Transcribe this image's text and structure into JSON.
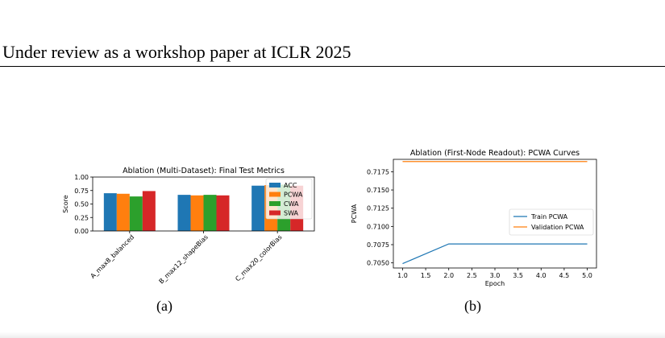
{
  "page": {
    "header": "Under review as a workshop paper at ICLR 2025",
    "subcaption_a": "(a)",
    "subcaption_b": "(b)"
  },
  "chart_data": [
    {
      "type": "bar",
      "title": "Ablation (Multi-Dataset): Final Test Metrics",
      "ylabel": "Score",
      "xlabel": "",
      "ylim": [
        0,
        1.0
      ],
      "yticks": [
        "0.00",
        "0.25",
        "0.50",
        "0.75",
        "1.00"
      ],
      "categories": [
        "A_max8_balanced",
        "B_max12_shapeBias",
        "C_max20_colorBias"
      ],
      "legend_position": "upper-right",
      "series": [
        {
          "name": "ACC",
          "color": "#1f77b4",
          "values": [
            0.7,
            0.67,
            0.84
          ]
        },
        {
          "name": "PCWA",
          "color": "#ff7f0e",
          "values": [
            0.69,
            0.66,
            0.85
          ]
        },
        {
          "name": "CWA",
          "color": "#2ca02c",
          "values": [
            0.64,
            0.67,
            0.86
          ]
        },
        {
          "name": "SWA",
          "color": "#d62728",
          "values": [
            0.74,
            0.66,
            0.84
          ]
        }
      ]
    },
    {
      "type": "line",
      "title": "Ablation (First-Node Readout): PCWA Curves",
      "xlabel": "Epoch",
      "ylabel": "PCWA",
      "xlim": [
        0.8,
        5.2
      ],
      "ylim": [
        0.7043,
        0.7192
      ],
      "xticks": [
        "1.0",
        "1.5",
        "2.0",
        "2.5",
        "3.0",
        "3.5",
        "4.0",
        "4.5",
        "5.0"
      ],
      "yticks": [
        "0.7050",
        "0.7075",
        "0.7100",
        "0.7125",
        "0.7150",
        "0.7175"
      ],
      "legend_position": "center-right",
      "x": [
        1,
        2,
        3,
        4,
        5
      ],
      "series": [
        {
          "name": "Train PCWA",
          "color": "#1f77b4",
          "values": [
            0.7049,
            0.7076,
            0.7076,
            0.7076,
            0.7076
          ]
        },
        {
          "name": "Validation PCWA",
          "color": "#ff7f0e",
          "values": [
            0.7189,
            0.7189,
            0.7189,
            0.7189,
            0.7189
          ]
        }
      ]
    }
  ]
}
